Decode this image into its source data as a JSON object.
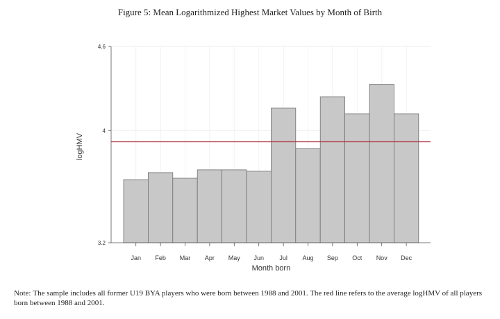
{
  "figure": {
    "title": "Figure 5: Mean Logarithmized Highest Market Values by Month of Birth",
    "note_label": "Note:",
    "note": "The sample includes all former U19 BYA players who were born between 1988 and 2001. The red line refers to the average logHMV of all players born between 1988 and 2001."
  },
  "chart_data": {
    "type": "bar",
    "title": "Figure 5: Mean Logarithmized Highest Market Values by Month of Birth",
    "xlabel": "Month born",
    "ylabel": "logHMV",
    "categories": [
      "Jan",
      "Feb",
      "Mar",
      "Apr",
      "May",
      "Jun",
      "Jul",
      "Aug",
      "Sep",
      "Oct",
      "Nov",
      "Dec"
    ],
    "values": [
      3.65,
      3.7,
      3.66,
      3.72,
      3.72,
      3.71,
      4.16,
      3.87,
      4.24,
      4.12,
      4.33,
      4.12
    ],
    "ylim": [
      3.2,
      4.6
    ],
    "yticks": [
      3.2,
      4,
      4.6
    ],
    "ytick_labels": [
      "3.2",
      "4",
      "4.6"
    ],
    "reference_line": {
      "value": 3.92,
      "color": "#b03040",
      "description": "average logHMV"
    },
    "grid": true,
    "bar_color": "#c8c8c8",
    "bar_edge_color": "#6e6e6e"
  }
}
